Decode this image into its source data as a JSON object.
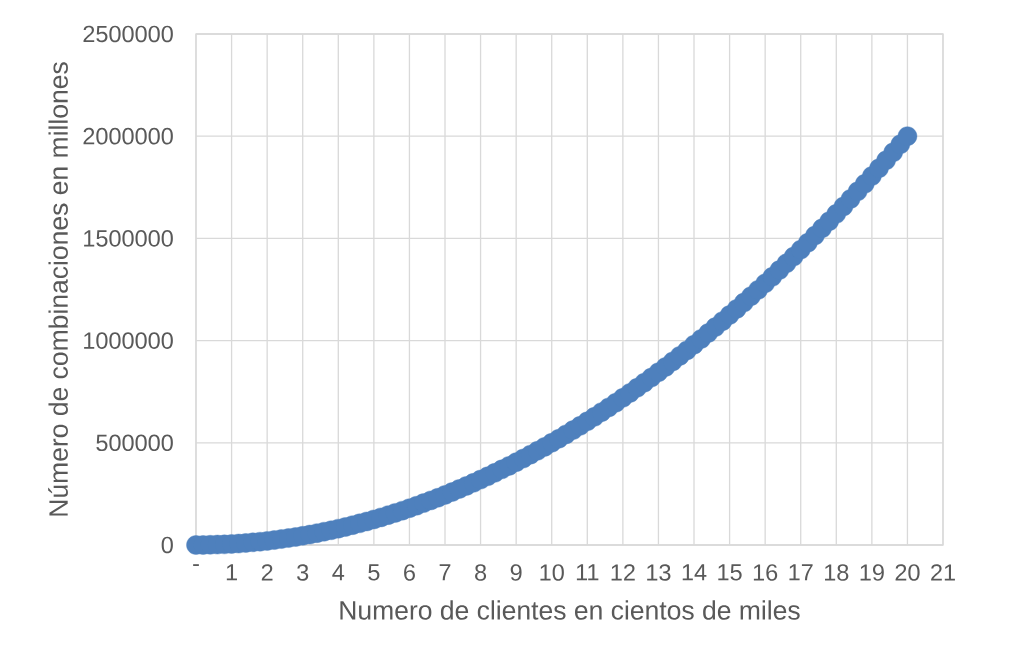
{
  "chart_data": {
    "type": "scatter",
    "xlabel": "Numero de clientes en cientos de miles",
    "ylabel": "Número de combinaciones en millones",
    "x": [
      0,
      0.2,
      0.4,
      0.6,
      0.8,
      1,
      1.2,
      1.4,
      1.6,
      1.8,
      2,
      2.2,
      2.4,
      2.6,
      2.8,
      3,
      3.2,
      3.4,
      3.6,
      3.8,
      4,
      4.2,
      4.4,
      4.6,
      4.8,
      5,
      5.2,
      5.4,
      5.6,
      5.8,
      6,
      6.2,
      6.4,
      6.6,
      6.8,
      7,
      7.2,
      7.4,
      7.6,
      7.8,
      8,
      8.2,
      8.4,
      8.6,
      8.8,
      9,
      9.2,
      9.4,
      9.6,
      9.8,
      10,
      10.2,
      10.4,
      10.6,
      10.8,
      11,
      11.2,
      11.4,
      11.6,
      11.8,
      12,
      12.2,
      12.4,
      12.6,
      12.8,
      13,
      13.2,
      13.4,
      13.6,
      13.8,
      14,
      14.2,
      14.4,
      14.6,
      14.8,
      15,
      15.2,
      15.4,
      15.6,
      15.8,
      16,
      16.2,
      16.4,
      16.6,
      16.8,
      17,
      17.2,
      17.4,
      17.6,
      17.8,
      18,
      18.2,
      18.4,
      18.6,
      18.8,
      19,
      19.2,
      19.4,
      19.6,
      19.8,
      20
    ],
    "series": [
      {
        "color": "#4e80bd",
        "values": [
          0,
          0,
          1000,
          2000,
          3000,
          5000,
          7000,
          10000,
          13000,
          16000,
          20000,
          24000,
          29000,
          34000,
          39000,
          45000,
          51000,
          58000,
          65000,
          72000,
          80000,
          88000,
          97000,
          106000,
          115000,
          125000,
          135000,
          146000,
          157000,
          168000,
          180000,
          192000,
          205000,
          218000,
          231000,
          245000,
          259000,
          274000,
          289000,
          304000,
          320000,
          336000,
          353000,
          370000,
          387000,
          405000,
          423000,
          442000,
          461000,
          480000,
          500000,
          520000,
          541000,
          562000,
          583000,
          605000,
          627000,
          650000,
          673000,
          696000,
          720000,
          744000,
          769000,
          794000,
          819000,
          845000,
          871000,
          898000,
          925000,
          952000,
          980000,
          1008000,
          1037000,
          1066000,
          1095000,
          1125000,
          1155000,
          1186000,
          1217000,
          1248000,
          1280000,
          1312000,
          1345000,
          1378000,
          1411000,
          1445000,
          1479000,
          1514000,
          1549000,
          1584000,
          1620000,
          1656000,
          1693000,
          1730000,
          1767000,
          1805000,
          1843000,
          1882000,
          1921000,
          1960000,
          2000000
        ]
      }
    ],
    "xlim": [
      0,
      21
    ],
    "ylim": [
      0,
      2500000
    ],
    "xticks": [
      {
        "value": 0,
        "label": "-"
      },
      1,
      2,
      3,
      4,
      5,
      6,
      7,
      8,
      9,
      10,
      11,
      12,
      13,
      14,
      15,
      16,
      17,
      18,
      19,
      20,
      21
    ],
    "yticks": [
      0,
      500000,
      1000000,
      1500000,
      2000000,
      2500000
    ],
    "grid": true,
    "marker": "circle"
  }
}
